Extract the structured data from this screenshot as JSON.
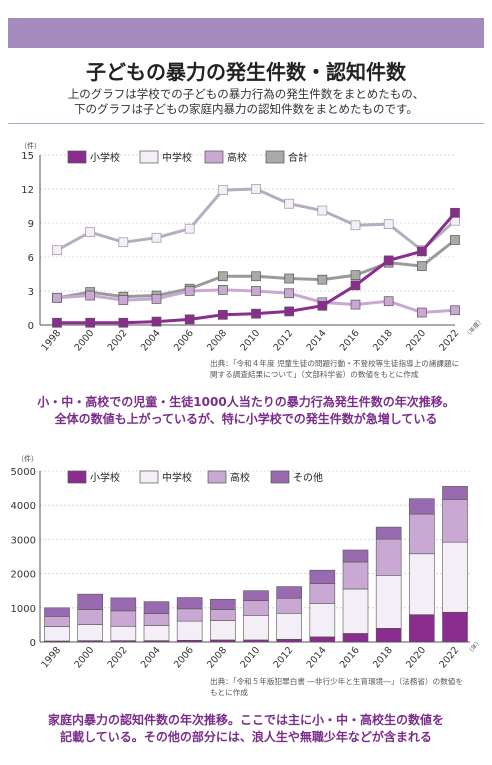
{
  "header": {
    "title": "子どもの暴力の発生件数・認知件数",
    "subtitle_line1": "上のグラフは学校での子どもの暴力行為の発生件数をまとめたもの、",
    "subtitle_line2": "下のグラフは子どもの家庭内暴力の認知件数をまとめたものです。"
  },
  "colors": {
    "elementary": "#8b2c8f",
    "junior_high": "#f4eef6",
    "high_school": "#c9a9d3",
    "total": "#aaaaaa",
    "other": "#9a6ab0",
    "accent": "#7a2d8a",
    "band": "#a38bbd"
  },
  "chart_data": [
    {
      "type": "line",
      "unit_label": "（件）",
      "x": [
        "1998",
        "2000",
        "2002",
        "2004",
        "2006",
        "2008",
        "2010",
        "2012",
        "2014",
        "2016",
        "2018",
        "2020",
        "2022"
      ],
      "x_unit": "（年度）",
      "ylim": [
        0,
        15
      ],
      "yticks": [
        0,
        3,
        6,
        9,
        12,
        15
      ],
      "legend": [
        "小学校",
        "中学校",
        "高校",
        "合計"
      ],
      "series": [
        {
          "name": "小学校",
          "values": [
            0.2,
            0.2,
            0.2,
            0.3,
            0.5,
            0.9,
            1.0,
            1.2,
            1.7,
            3.5,
            5.7,
            6.5,
            9.9
          ]
        },
        {
          "name": "中学校",
          "values": [
            6.6,
            8.2,
            7.3,
            7.7,
            8.5,
            11.9,
            12.0,
            10.7,
            10.1,
            8.8,
            8.9,
            6.6,
            9.2
          ]
        },
        {
          "name": "高校",
          "values": [
            2.4,
            2.6,
            2.2,
            2.3,
            3.0,
            3.1,
            3.0,
            2.8,
            2.0,
            1.8,
            2.1,
            1.1,
            1.3
          ]
        },
        {
          "name": "合計",
          "values": [
            2.4,
            2.9,
            2.5,
            2.6,
            3.2,
            4.3,
            4.3,
            4.1,
            4.0,
            4.4,
            5.5,
            5.2,
            7.5
          ]
        }
      ],
      "source_line1": "出典：「令和４年度 児童生徒の問題行動・不登校等生徒指導上の諸課題に",
      "source_line2": "関する調査結果について」（文部科学省）の数値をもとに作成",
      "caption_line1": "小・中・高校での児童・生徒1000人当たりの暴力行為発生件数の年次推移。",
      "caption_line2": "全体の数値も上がっているが、特に小学校での発生件数が急増している"
    },
    {
      "type": "bar",
      "stacked": true,
      "unit_label": "（件）",
      "categories": [
        "1998",
        "2000",
        "2002",
        "2004",
        "2006",
        "2008",
        "2010",
        "2012",
        "2014",
        "2016",
        "2018",
        "2020",
        "2022"
      ],
      "x_unit": "（年）",
      "ylim": [
        0,
        5000
      ],
      "yticks": [
        0,
        1000,
        2000,
        3000,
        4000,
        5000
      ],
      "legend": [
        "小学校",
        "中学校",
        "高校",
        "その他"
      ],
      "series": [
        {
          "name": "小学校",
          "values": [
            30,
            40,
            40,
            40,
            50,
            60,
            60,
            80,
            150,
            250,
            400,
            800,
            870
          ]
        },
        {
          "name": "中学校",
          "values": [
            420,
            470,
            420,
            440,
            560,
            570,
            720,
            760,
            980,
            1300,
            1550,
            1780,
            2050
          ]
        },
        {
          "name": "高校",
          "values": [
            300,
            440,
            450,
            350,
            360,
            320,
            430,
            440,
            580,
            790,
            1060,
            1160,
            1250
          ]
        },
        {
          "name": "その他",
          "values": [
            250,
            450,
            380,
            350,
            330,
            300,
            290,
            340,
            390,
            350,
            350,
            450,
            380
          ]
        }
      ],
      "source_line1": "出典：「令和５年版犯罪白書 ―非行少年と生育環境―」（法務省）の数値を",
      "source_line2": "もとに作成",
      "caption_line1": "家庭内暴力の認知件数の年次推移。ここでは主に小・中・高校生の数値を",
      "caption_line2": "記載している。その他の部分には、浪人生や無職少年などが含まれる"
    }
  ]
}
